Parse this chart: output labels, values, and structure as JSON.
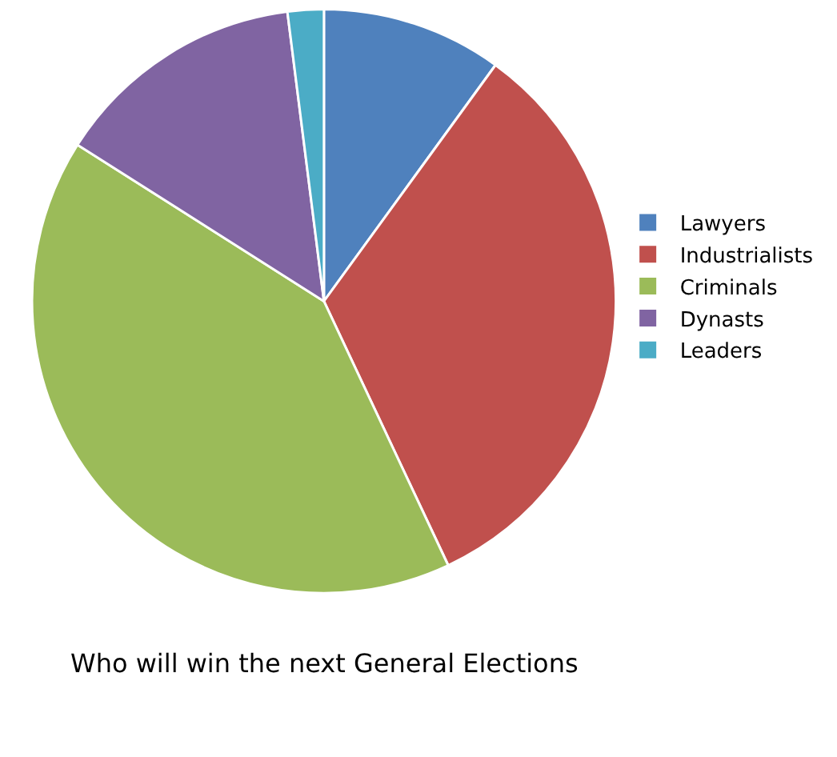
{
  "chart_data": {
    "type": "pie",
    "title": "Who will win the next General Elections",
    "categories": [
      "Lawyers",
      "Industrialists",
      "Criminals",
      "Dynasts",
      "Leaders"
    ],
    "values": [
      10,
      33,
      41,
      14,
      2
    ],
    "colors": [
      "#4f81bd",
      "#c0504d",
      "#9bbb59",
      "#8064a2",
      "#4bacc6"
    ],
    "legend": "right"
  }
}
